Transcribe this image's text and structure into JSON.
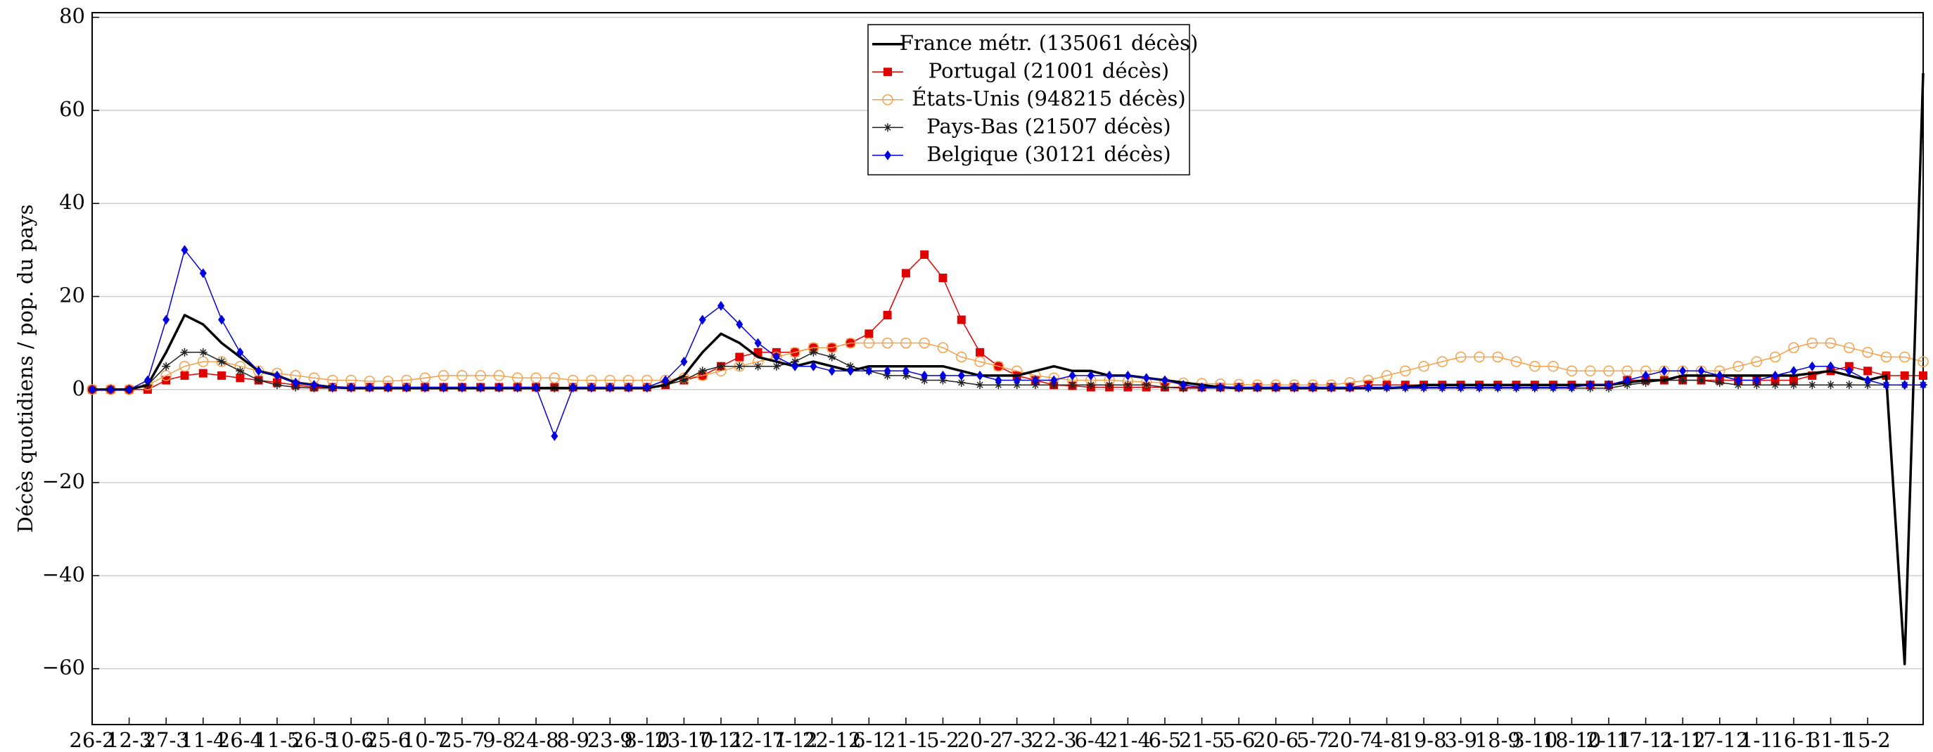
{
  "chart_data": {
    "type": "line",
    "ylabel": "Décès quotidiens / pop. du pays",
    "categories": [
      "26-2",
      null,
      "12-3",
      null,
      "27-3",
      null,
      "11-4",
      null,
      "26-4",
      null,
      "11-5",
      null,
      "26-5",
      null,
      "10-6",
      null,
      "25-6",
      null,
      "10-7",
      null,
      "25-7",
      null,
      "9-8",
      null,
      "24-8",
      null,
      "8-9",
      null,
      "23-9",
      null,
      "8-10",
      null,
      "23-10",
      null,
      "7-11",
      null,
      "22-11",
      null,
      "7-12",
      null,
      "22-12",
      null,
      "6-1",
      null,
      "21-1",
      null,
      "5-2",
      null,
      "20-2",
      null,
      "7-3",
      null,
      "22-3",
      null,
      "6-4",
      null,
      "21-4",
      null,
      "6-5",
      null,
      "21-5",
      null,
      "5-6",
      null,
      "20-6",
      null,
      "5-7",
      null,
      "20-7",
      null,
      "4-8",
      null,
      "19-8",
      null,
      "3-9",
      null,
      "18-9",
      null,
      "3-10",
      null,
      "18-10",
      null,
      "2-11",
      null,
      "17-11",
      null,
      "2-12",
      null,
      "17-12",
      null,
      "1-1",
      null,
      "16-1",
      null,
      "31-1",
      null,
      "15-2",
      null,
      null,
      null
    ],
    "series": [
      {
        "name": "France métr. (135061 décès)",
        "color": "#000000",
        "marker": "none",
        "values": [
          0,
          0,
          0,
          1,
          8,
          16,
          14,
          10,
          7,
          4,
          3,
          1.5,
          1,
          0.5,
          0.3,
          0.3,
          0.3,
          0.3,
          0.3,
          0.3,
          0.3,
          0.3,
          0.3,
          0.3,
          0.3,
          0.3,
          0.3,
          0.3,
          0.3,
          0.3,
          0.3,
          1,
          3,
          8,
          12,
          10,
          7,
          6,
          5,
          6,
          5,
          4,
          5,
          5,
          5,
          5,
          5,
          4,
          3,
          3,
          3,
          4,
          5,
          4,
          4,
          3,
          3,
          2.5,
          2,
          1.5,
          1,
          0.5,
          0.3,
          0.3,
          0.3,
          0.3,
          0.3,
          0.3,
          0.3,
          0.3,
          0.3,
          0.5,
          1,
          1,
          1,
          1,
          1,
          1,
          1,
          1,
          1,
          1,
          1,
          1.5,
          2,
          2,
          3,
          3,
          3,
          3,
          3,
          3,
          3,
          3.5,
          4,
          3,
          2,
          3,
          -59,
          68
        ]
      },
      {
        "name": "Portugal (21001 décès)",
        "color": "#e00000",
        "marker": "square",
        "values": [
          0,
          0,
          0,
          0,
          2,
          3,
          3.5,
          3,
          2.5,
          2,
          1.5,
          1,
          0.5,
          0.5,
          0.5,
          0.5,
          0.5,
          0.5,
          0.5,
          0.5,
          0.5,
          0.5,
          0.5,
          0.5,
          0.5,
          0.5,
          0.5,
          0.5,
          0.5,
          0.5,
          0.5,
          1,
          2,
          3,
          5,
          7,
          8,
          8,
          8,
          9,
          9,
          10,
          12,
          16,
          25,
          29,
          24,
          15,
          8,
          5,
          3,
          2,
          1,
          0.8,
          0.5,
          0.5,
          0.5,
          0.5,
          0.5,
          0.5,
          0.5,
          0.5,
          0.5,
          0.5,
          0.5,
          0.5,
          0.5,
          0.5,
          0.5,
          1,
          1,
          1,
          1,
          1,
          1,
          1,
          1,
          1,
          1,
          1,
          1,
          1,
          1,
          2,
          2,
          2,
          2,
          2,
          2,
          2,
          2,
          2,
          2,
          3,
          4,
          5,
          4,
          3,
          3,
          3
        ]
      },
      {
        "name": "États-Unis (948215 décès)",
        "color": "#f5a04a",
        "marker": "circle",
        "values": [
          0,
          0,
          0,
          1,
          3,
          5,
          6,
          6,
          5,
          4,
          3.5,
          3,
          2.5,
          2,
          2,
          1.8,
          1.8,
          2,
          2.5,
          3,
          3,
          3,
          3,
          2.5,
          2.5,
          2.5,
          2,
          2,
          2,
          2,
          2,
          2,
          2.5,
          3,
          4,
          5,
          6,
          7,
          8,
          9,
          9,
          10,
          10,
          10,
          10,
          10,
          9,
          7,
          6,
          5,
          4,
          3,
          2.5,
          2,
          2,
          2,
          1.8,
          1.6,
          1.5,
          1.4,
          1.3,
          1.2,
          1.1,
          1,
          1,
          1,
          1,
          1,
          1.5,
          2,
          3,
          4,
          5,
          6,
          7,
          7,
          7,
          6,
          5,
          5,
          4,
          4,
          4,
          4,
          4,
          4,
          4,
          4,
          4,
          5,
          6,
          7,
          9,
          10,
          10,
          9,
          8,
          7,
          7,
          6
        ]
      },
      {
        "name": "Pays-Bas (21507 décès)",
        "color": "#222222",
        "marker": "star",
        "values": [
          0,
          0,
          0,
          1,
          5,
          8,
          8,
          6,
          4,
          2,
          1,
          0.5,
          0.3,
          0.3,
          0.3,
          0.3,
          0.3,
          0.3,
          0.3,
          0.3,
          0.3,
          0.3,
          0.3,
          0.3,
          0.3,
          0.3,
          0.3,
          0.3,
          0.3,
          0.3,
          0.3,
          1,
          2,
          4,
          5,
          5,
          5,
          5,
          6,
          8,
          7,
          5,
          4,
          3,
          3,
          2,
          2,
          1.5,
          1,
          1,
          1,
          1,
          1,
          1,
          1,
          1,
          1,
          1,
          0.5,
          0.3,
          0.3,
          0.3,
          0.3,
          0.3,
          0.3,
          0.3,
          0.3,
          0.3,
          0.3,
          0.3,
          0.3,
          0.3,
          0.3,
          0.3,
          0.3,
          0.3,
          0.3,
          0.3,
          0.3,
          0.3,
          0.3,
          0.3,
          0.3,
          1,
          1.5,
          2,
          2,
          2,
          1.5,
          1,
          1,
          1,
          1,
          1,
          1,
          1,
          1,
          1,
          1,
          1
        ]
      },
      {
        "name": "Belgique (30121 décès)",
        "color": "#0000e0",
        "marker": "diamond",
        "values": [
          0,
          0,
          0,
          2,
          15,
          30,
          25,
          15,
          8,
          4,
          3,
          1.5,
          1,
          0.5,
          0.5,
          0.5,
          0.5,
          0.5,
          0.5,
          0.5,
          0.5,
          0.5,
          0.5,
          0.5,
          0.5,
          -10,
          0.5,
          0.5,
          0.5,
          0.5,
          0.5,
          2,
          6,
          15,
          18,
          14,
          10,
          7,
          5,
          5,
          4,
          4,
          4,
          4,
          4,
          3,
          3,
          3,
          3,
          2,
          2,
          2,
          2,
          3,
          3,
          3,
          3,
          2.5,
          2,
          1,
          0.5,
          0.5,
          0.5,
          0.5,
          0.5,
          0.5,
          0.5,
          0.5,
          0.5,
          0.5,
          0.5,
          0.5,
          0.5,
          0.5,
          0.5,
          0.5,
          0.5,
          0.5,
          0.5,
          0.5,
          0.5,
          1,
          1,
          2,
          3,
          4,
          4,
          4,
          3,
          2,
          2,
          3,
          4,
          5,
          5,
          4,
          2,
          1,
          1,
          1
        ]
      }
    ],
    "ylim": [
      -72,
      81
    ],
    "yticks": [
      {
        "value": -60,
        "label": "−60"
      },
      {
        "value": -40,
        "label": "−40"
      },
      {
        "value": -20,
        "label": "−20"
      },
      0,
      20,
      40,
      60,
      80
    ],
    "grid": true,
    "legend": "top-center"
  }
}
